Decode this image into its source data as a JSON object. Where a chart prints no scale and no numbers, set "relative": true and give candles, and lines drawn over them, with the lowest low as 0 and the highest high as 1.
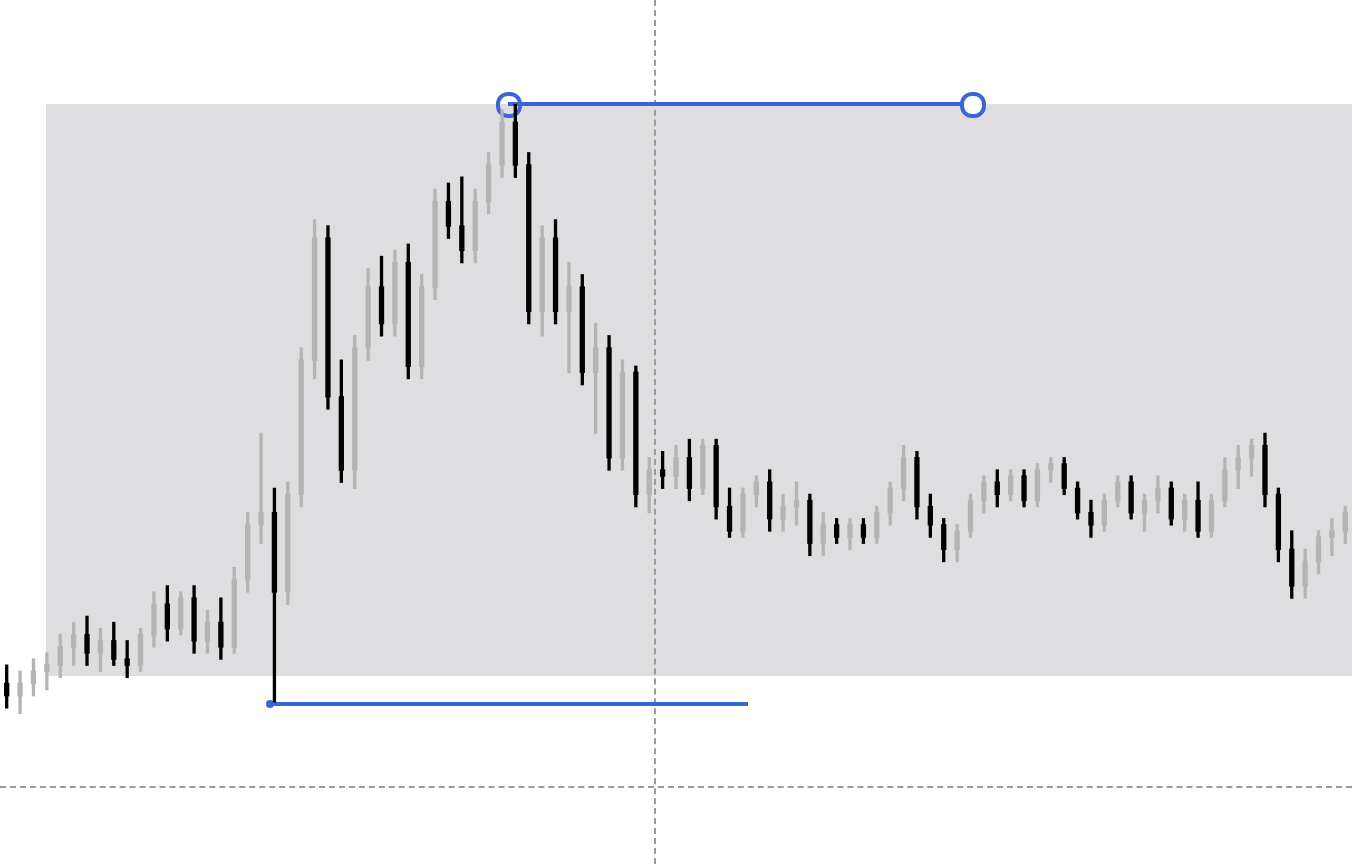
{
  "chart_data": {
    "type": "candlestick",
    "relative": true,
    "categories": [
      null,
      null,
      null,
      null,
      null,
      null,
      null,
      null,
      null,
      null,
      null,
      null,
      null,
      null,
      null,
      null,
      null,
      null,
      null,
      null,
      null,
      null,
      null,
      null,
      null,
      null,
      null,
      null,
      null,
      null,
      null,
      null,
      null,
      null,
      null,
      null,
      null,
      null,
      null,
      null,
      null,
      null,
      null,
      null,
      null,
      null,
      null,
      null,
      null,
      null,
      null,
      null,
      null,
      null,
      null,
      null,
      null,
      null,
      null,
      null,
      null,
      null,
      null,
      null,
      null,
      null,
      null,
      null,
      null,
      null,
      null,
      null,
      null,
      null,
      null,
      null,
      null,
      null,
      null,
      null,
      null,
      null,
      null,
      null,
      null,
      null,
      null,
      null,
      null,
      null,
      null,
      null,
      null,
      null,
      null,
      null,
      null,
      null,
      null,
      null,
      null
    ],
    "ohlc": [
      [
        0.05,
        0.08,
        0.01,
        0.03
      ],
      [
        0.03,
        0.07,
        0.0,
        0.05
      ],
      [
        0.05,
        0.09,
        0.03,
        0.07
      ],
      [
        0.07,
        0.1,
        0.04,
        0.08
      ],
      [
        0.08,
        0.13,
        0.06,
        0.11
      ],
      [
        0.11,
        0.15,
        0.08,
        0.13
      ],
      [
        0.13,
        0.16,
        0.08,
        0.1
      ],
      [
        0.1,
        0.14,
        0.07,
        0.12
      ],
      [
        0.12,
        0.15,
        0.08,
        0.09
      ],
      [
        0.09,
        0.12,
        0.06,
        0.08
      ],
      [
        0.08,
        0.14,
        0.07,
        0.13
      ],
      [
        0.13,
        0.2,
        0.11,
        0.18
      ],
      [
        0.18,
        0.21,
        0.12,
        0.14
      ],
      [
        0.14,
        0.2,
        0.13,
        0.19
      ],
      [
        0.19,
        0.21,
        0.1,
        0.12
      ],
      [
        0.12,
        0.17,
        0.1,
        0.15
      ],
      [
        0.15,
        0.19,
        0.09,
        0.11
      ],
      [
        0.11,
        0.24,
        0.1,
        0.22
      ],
      [
        0.22,
        0.33,
        0.2,
        0.31
      ],
      [
        0.31,
        0.46,
        0.28,
        0.33
      ],
      [
        0.33,
        0.37,
        0.02,
        0.2
      ],
      [
        0.2,
        0.38,
        0.18,
        0.36
      ],
      [
        0.36,
        0.6,
        0.34,
        0.58
      ],
      [
        0.58,
        0.81,
        0.55,
        0.78
      ],
      [
        0.78,
        0.8,
        0.5,
        0.52
      ],
      [
        0.52,
        0.58,
        0.38,
        0.4
      ],
      [
        0.4,
        0.62,
        0.37,
        0.6
      ],
      [
        0.6,
        0.73,
        0.58,
        0.7
      ],
      [
        0.7,
        0.75,
        0.62,
        0.64
      ],
      [
        0.64,
        0.76,
        0.62,
        0.74
      ],
      [
        0.74,
        0.77,
        0.55,
        0.57
      ],
      [
        0.57,
        0.72,
        0.55,
        0.7
      ],
      [
        0.7,
        0.86,
        0.68,
        0.84
      ],
      [
        0.84,
        0.87,
        0.78,
        0.8
      ],
      [
        0.8,
        0.88,
        0.74,
        0.76
      ],
      [
        0.76,
        0.86,
        0.74,
        0.84
      ],
      [
        0.84,
        0.92,
        0.82,
        0.9
      ],
      [
        0.9,
        0.99,
        0.88,
        0.97
      ],
      [
        0.97,
        1.0,
        0.88,
        0.9
      ],
      [
        0.9,
        0.92,
        0.64,
        0.66
      ],
      [
        0.66,
        0.8,
        0.62,
        0.78
      ],
      [
        0.78,
        0.81,
        0.64,
        0.66
      ],
      [
        0.66,
        0.74,
        0.56,
        0.7
      ],
      [
        0.7,
        0.72,
        0.54,
        0.56
      ],
      [
        0.56,
        0.64,
        0.46,
        0.6
      ],
      [
        0.6,
        0.62,
        0.4,
        0.42
      ],
      [
        0.42,
        0.58,
        0.4,
        0.56
      ],
      [
        0.56,
        0.57,
        0.34,
        0.36
      ],
      [
        0.36,
        0.42,
        0.33,
        0.4
      ],
      [
        0.4,
        0.43,
        0.37,
        0.39
      ],
      [
        0.39,
        0.44,
        0.37,
        0.42
      ],
      [
        0.42,
        0.45,
        0.35,
        0.37
      ],
      [
        0.37,
        0.45,
        0.36,
        0.44
      ],
      [
        0.44,
        0.45,
        0.32,
        0.34
      ],
      [
        0.34,
        0.37,
        0.29,
        0.3
      ],
      [
        0.3,
        0.37,
        0.29,
        0.36
      ],
      [
        0.36,
        0.39,
        0.34,
        0.38
      ],
      [
        0.38,
        0.4,
        0.3,
        0.32
      ],
      [
        0.32,
        0.36,
        0.3,
        0.34
      ],
      [
        0.34,
        0.38,
        0.31,
        0.35
      ],
      [
        0.35,
        0.36,
        0.26,
        0.28
      ],
      [
        0.28,
        0.33,
        0.26,
        0.31
      ],
      [
        0.31,
        0.32,
        0.28,
        0.29
      ],
      [
        0.29,
        0.32,
        0.27,
        0.31
      ],
      [
        0.31,
        0.32,
        0.28,
        0.29
      ],
      [
        0.29,
        0.34,
        0.28,
        0.33
      ],
      [
        0.33,
        0.38,
        0.31,
        0.37
      ],
      [
        0.37,
        0.44,
        0.35,
        0.42
      ],
      [
        0.42,
        0.43,
        0.32,
        0.34
      ],
      [
        0.34,
        0.36,
        0.29,
        0.31
      ],
      [
        0.31,
        0.32,
        0.25,
        0.27
      ],
      [
        0.27,
        0.31,
        0.25,
        0.3
      ],
      [
        0.3,
        0.36,
        0.29,
        0.35
      ],
      [
        0.35,
        0.39,
        0.33,
        0.38
      ],
      [
        0.38,
        0.4,
        0.34,
        0.36
      ],
      [
        0.36,
        0.4,
        0.35,
        0.39
      ],
      [
        0.39,
        0.4,
        0.34,
        0.35
      ],
      [
        0.35,
        0.41,
        0.34,
        0.4
      ],
      [
        0.4,
        0.42,
        0.38,
        0.41
      ],
      [
        0.41,
        0.42,
        0.36,
        0.37
      ],
      [
        0.37,
        0.38,
        0.32,
        0.33
      ],
      [
        0.33,
        0.35,
        0.29,
        0.31
      ],
      [
        0.31,
        0.36,
        0.3,
        0.35
      ],
      [
        0.35,
        0.39,
        0.34,
        0.38
      ],
      [
        0.38,
        0.39,
        0.32,
        0.33
      ],
      [
        0.33,
        0.36,
        0.3,
        0.35
      ],
      [
        0.35,
        0.39,
        0.33,
        0.37
      ],
      [
        0.37,
        0.38,
        0.31,
        0.32
      ],
      [
        0.32,
        0.36,
        0.3,
        0.35
      ],
      [
        0.35,
        0.38,
        0.29,
        0.3
      ],
      [
        0.3,
        0.36,
        0.29,
        0.35
      ],
      [
        0.35,
        0.42,
        0.34,
        0.4
      ],
      [
        0.4,
        0.44,
        0.37,
        0.42
      ],
      [
        0.42,
        0.45,
        0.39,
        0.44
      ],
      [
        0.44,
        0.46,
        0.34,
        0.36
      ],
      [
        0.36,
        0.37,
        0.25,
        0.27
      ],
      [
        0.27,
        0.3,
        0.19,
        0.21
      ],
      [
        0.21,
        0.27,
        0.19,
        0.25
      ],
      [
        0.25,
        0.3,
        0.23,
        0.29
      ],
      [
        0.29,
        0.32,
        0.26,
        0.3
      ],
      [
        0.3,
        0.34,
        0.28,
        0.33
      ]
    ],
    "colors": [
      "#000000",
      "#b4b4b4",
      "#b4b4b4",
      "#b4b4b4",
      "#b4b4b4",
      "#b4b4b4",
      "#000000",
      "#b4b4b4",
      "#000000",
      "#000000",
      "#b4b4b4",
      "#b4b4b4",
      "#000000",
      "#b4b4b4",
      "#000000",
      "#b4b4b4",
      "#000000",
      "#b4b4b4",
      "#b4b4b4",
      "#b4b4b4",
      "#000000",
      "#b4b4b4",
      "#b4b4b4",
      "#b4b4b4",
      "#000000",
      "#000000",
      "#b4b4b4",
      "#b4b4b4",
      "#000000",
      "#b4b4b4",
      "#000000",
      "#b4b4b4",
      "#b4b4b4",
      "#000000",
      "#000000",
      "#b4b4b4",
      "#b4b4b4",
      "#b4b4b4",
      "#000000",
      "#000000",
      "#b4b4b4",
      "#000000",
      "#b4b4b4",
      "#000000",
      "#b4b4b4",
      "#000000",
      "#b4b4b4",
      "#000000",
      "#b4b4b4",
      "#000000",
      "#b4b4b4",
      "#000000",
      "#b4b4b4",
      "#000000",
      "#000000",
      "#b4b4b4",
      "#b4b4b4",
      "#000000",
      "#b4b4b4",
      "#b4b4b4",
      "#000000",
      "#b4b4b4",
      "#000000",
      "#b4b4b4",
      "#000000",
      "#b4b4b4",
      "#b4b4b4",
      "#b4b4b4",
      "#000000",
      "#000000",
      "#000000",
      "#b4b4b4",
      "#b4b4b4",
      "#b4b4b4",
      "#000000",
      "#b4b4b4",
      "#000000",
      "#b4b4b4",
      "#b4b4b4",
      "#000000",
      "#000000",
      "#000000",
      "#b4b4b4",
      "#b4b4b4",
      "#000000",
      "#b4b4b4",
      "#b4b4b4",
      "#000000",
      "#b4b4b4",
      "#000000",
      "#b4b4b4",
      "#b4b4b4",
      "#b4b4b4",
      "#b4b4b4",
      "#000000",
      "#000000",
      "#000000",
      "#b4b4b4",
      "#b4b4b4",
      "#b4b4b4",
      "#b4b4b4"
    ]
  }
}
